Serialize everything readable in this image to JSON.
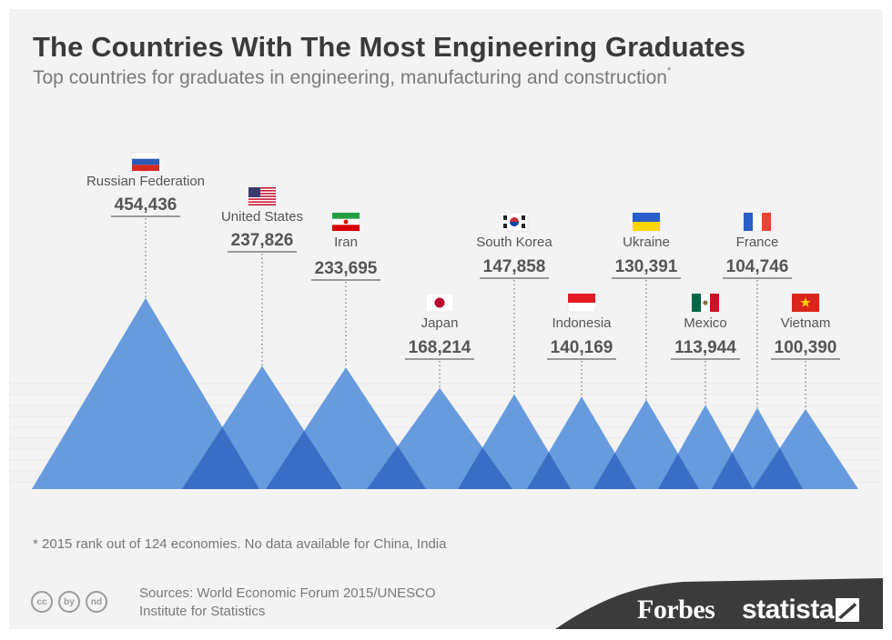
{
  "header": {
    "title": "The Countries With The Most Engineering Graduates",
    "subtitle": "Top countries for graduates in engineering, manufacturing and construction",
    "subtitle_mark": "*"
  },
  "chart_data": {
    "type": "bar",
    "title": "The Countries With The Most Engineering Graduates",
    "categories": [
      "Russian Federation",
      "United States",
      "Iran",
      "Japan",
      "South Korea",
      "Indonesia",
      "Ukraine",
      "Mexico",
      "France",
      "Vietnam"
    ],
    "values": [
      454436,
      237826,
      233695,
      168214,
      147858,
      140169,
      130391,
      113944,
      104746,
      100390
    ],
    "value_labels": [
      "454,436",
      "237,826",
      "233,695",
      "168,214",
      "147,858",
      "140,169",
      "130,391",
      "113,944",
      "104,746",
      "100,390"
    ],
    "flags": [
      "russia-flag",
      "usa-flag",
      "iran-flag",
      "japan-flag",
      "south-korea-flag",
      "indonesia-flag",
      "ukraine-flag",
      "mexico-flag",
      "france-flag",
      "vietnam-flag"
    ],
    "colors": {
      "peak": "#5b93dc",
      "overlap": "#3a6ec6",
      "label": "#555555"
    }
  },
  "note": "* 2015 rank out of 124 economies. No data available for China, India",
  "footer": {
    "source_line1": "Sources: World Economic Forum 2015/UNESCO",
    "source_line2": "Institute for Statistics",
    "cc_icons": [
      "cc",
      "by",
      "nd"
    ],
    "cc_icon_names": [
      "creative-commons-icon",
      "attribution-icon",
      "no-derivatives-icon"
    ],
    "brand1": "Forbes",
    "brand2": "statista"
  }
}
